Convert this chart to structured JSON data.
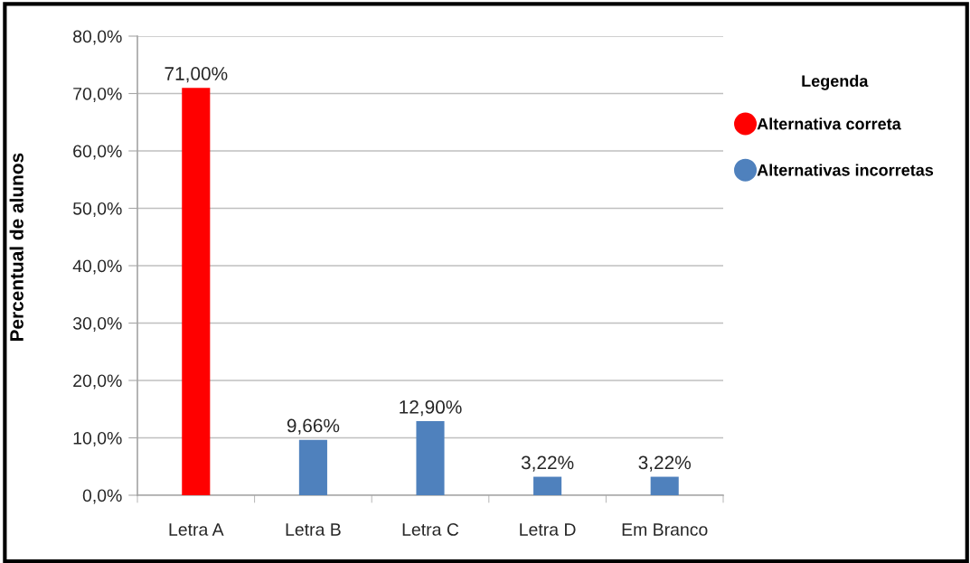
{
  "chart_data": {
    "type": "bar",
    "ylabel": "Percentual de alunos",
    "legend_title": "Legenda",
    "categories": [
      "Letra A",
      "Letra B",
      "Letra C",
      "Letra D",
      "Em Branco"
    ],
    "series": [
      {
        "name": "Alternativa correta",
        "color": "#ff0000",
        "values": [
          71.0,
          null,
          null,
          null,
          null
        ],
        "value_labels": [
          "71,00%",
          null,
          null,
          null,
          null
        ]
      },
      {
        "name": "Alternativas incorretas",
        "color": "#4f81bd",
        "values": [
          null,
          9.66,
          12.9,
          3.22,
          3.22
        ],
        "value_labels": [
          null,
          "9,66%",
          "12,90%",
          "3,22%",
          "3,22%"
        ]
      }
    ],
    "ylim": [
      0,
      80
    ],
    "yticks": [
      {
        "value": 0,
        "label": "0,0%"
      },
      {
        "value": 10,
        "label": "10,0%"
      },
      {
        "value": 20,
        "label": "20,0%"
      },
      {
        "value": 30,
        "label": "30,0%"
      },
      {
        "value": 40,
        "label": "40,0%"
      },
      {
        "value": 50,
        "label": "50,0%"
      },
      {
        "value": 60,
        "label": "60,0%"
      },
      {
        "value": 70,
        "label": "70,0%"
      },
      {
        "value": 80,
        "label": "80,0%"
      }
    ],
    "grid": "y",
    "legend": "right"
  }
}
